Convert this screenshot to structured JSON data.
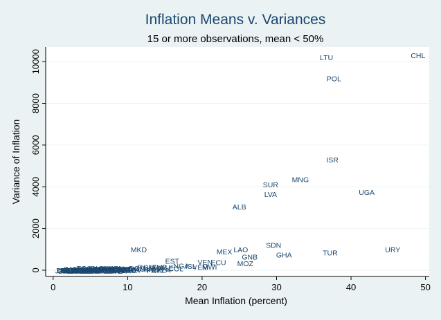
{
  "chart_data": {
    "type": "scatter",
    "title": "Inflation Means v. Variances",
    "subtitle": "15 or more observations, mean < 50%",
    "xlabel": "Mean Inflation (percent)",
    "ylabel": "Variance of Inflation",
    "xlim": [
      -1,
      50.5
    ],
    "ylim": [
      -300,
      10700
    ],
    "xticks": [
      0,
      10,
      20,
      30,
      40,
      50
    ],
    "yticks": [
      0,
      2000,
      4000,
      6000,
      8000,
      10000
    ],
    "grid": "horizontal",
    "marker": "country-code labels",
    "points": [
      {
        "label": "LTU",
        "x": 36.7,
        "y": 10200
      },
      {
        "label": "CHL",
        "x": 49.0,
        "y": 10300
      },
      {
        "label": "POL",
        "x": 37.7,
        "y": 9200
      },
      {
        "label": "ISR",
        "x": 37.5,
        "y": 5300
      },
      {
        "label": "MNG",
        "x": 33.2,
        "y": 4350
      },
      {
        "label": "SUR",
        "x": 29.2,
        "y": 4100
      },
      {
        "label": "UGA",
        "x": 42.1,
        "y": 3750
      },
      {
        "label": "LVA",
        "x": 29.2,
        "y": 3650
      },
      {
        "label": "ALB",
        "x": 25.0,
        "y": 3050
      },
      {
        "label": "SDN",
        "x": 29.6,
        "y": 1200
      },
      {
        "label": "MKD",
        "x": 11.5,
        "y": 1000
      },
      {
        "label": "MEX",
        "x": 23.0,
        "y": 900
      },
      {
        "label": "LAO",
        "x": 25.2,
        "y": 1000
      },
      {
        "label": "URY",
        "x": 45.6,
        "y": 1000
      },
      {
        "label": "TUR",
        "x": 37.2,
        "y": 850
      },
      {
        "label": "GHA",
        "x": 31.0,
        "y": 750
      },
      {
        "label": "GNB",
        "x": 26.4,
        "y": 650
      },
      {
        "label": "EST",
        "x": 16.0,
        "y": 450
      },
      {
        "label": "VEN",
        "x": 20.4,
        "y": 400
      },
      {
        "label": "ECU",
        "x": 22.2,
        "y": 380
      },
      {
        "label": "MOZ",
        "x": 25.8,
        "y": 330
      },
      {
        "label": "NGA",
        "x": 17.2,
        "y": 220
      },
      {
        "label": "ISL",
        "x": 18.5,
        "y": 200
      },
      {
        "label": "MWI",
        "x": 21.0,
        "y": 170
      },
      {
        "label": "YEM",
        "x": 19.8,
        "y": 150
      },
      {
        "label": "ROM",
        "x": 12.5,
        "y": 150
      },
      {
        "label": "ZMB",
        "x": 14.3,
        "y": 150
      },
      {
        "label": "SLE",
        "x": 15.2,
        "y": 120
      },
      {
        "label": "COL",
        "x": 16.5,
        "y": 80
      },
      {
        "label": "DOM",
        "x": 11.3,
        "y": 90
      },
      {
        "label": "KEN",
        "x": 8.5,
        "y": 90
      },
      {
        "label": "PHL",
        "x": 7.2,
        "y": 80
      },
      {
        "label": "GUY",
        "x": 6.0,
        "y": 100
      },
      {
        "label": "IND",
        "x": 7.8,
        "y": 60
      },
      {
        "label": "IDN",
        "x": 9.8,
        "y": 70
      },
      {
        "label": "JAM",
        "x": 10.5,
        "y": 40
      },
      {
        "label": "ETH",
        "x": 6.8,
        "y": 20
      },
      {
        "label": "HTI",
        "x": 10.0,
        "y": 20
      },
      {
        "label": "HND",
        "x": 13.2,
        "y": 40
      },
      {
        "label": "GTM",
        "x": 9.2,
        "y": 30
      },
      {
        "label": "TZA",
        "x": 14.8,
        "y": 10
      },
      {
        "label": "CRI",
        "x": 14.0,
        "y": 20
      },
      {
        "label": "PRY",
        "x": 13.5,
        "y": 0
      },
      {
        "label": "SLV",
        "x": 11.0,
        "y": 10
      },
      {
        "label": "CIV",
        "x": 5.2,
        "y": 10
      },
      {
        "label": "TGO",
        "x": 4.2,
        "y": 100
      },
      {
        "label": "SEN",
        "x": 3.6,
        "y": 40
      },
      {
        "label": "GAB",
        "x": 3.0,
        "y": 20
      },
      {
        "label": "BEN",
        "x": 2.6,
        "y": 10
      },
      {
        "label": "MLI",
        "x": 3.2,
        "y": 0
      },
      {
        "label": "NER",
        "x": 2.2,
        "y": 0
      },
      {
        "label": "BFA",
        "x": 2.0,
        "y": -10
      },
      {
        "label": "CMR",
        "x": 4.8,
        "y": 0
      },
      {
        "label": "TCD",
        "x": 5.6,
        "y": -10
      },
      {
        "label": "CAF",
        "x": 6.3,
        "y": 0
      },
      {
        "label": "COG",
        "x": 7.0,
        "y": -10
      },
      {
        "label": "MAR",
        "x": 5.4,
        "y": 20
      },
      {
        "label": "TUN",
        "x": 4.5,
        "y": 10
      },
      {
        "label": "THA",
        "x": 4.0,
        "y": 0
      },
      {
        "label": "MYS",
        "x": 3.4,
        "y": -20
      },
      {
        "label": "SGP",
        "x": 1.9,
        "y": 0
      },
      {
        "label": "CHE",
        "x": 1.6,
        "y": -30
      },
      {
        "label": "DEU",
        "x": 1.5,
        "y": -10
      },
      {
        "label": "JPN",
        "x": 1.2,
        "y": -20
      },
      {
        "label": "AUT",
        "x": 2.3,
        "y": -30
      },
      {
        "label": "NLD",
        "x": 2.0,
        "y": -40
      },
      {
        "label": "BEL",
        "x": 2.6,
        "y": -20
      },
      {
        "label": "USA",
        "x": 3.0,
        "y": -30
      },
      {
        "label": "CAN",
        "x": 3.3,
        "y": -10
      },
      {
        "label": "FRA",
        "x": 3.8,
        "y": -20
      },
      {
        "label": "GBR",
        "x": 4.4,
        "y": -30
      },
      {
        "label": "ITA",
        "x": 5.0,
        "y": -20
      },
      {
        "label": "ESP",
        "x": 5.8,
        "y": -30
      },
      {
        "label": "PRT",
        "x": 7.4,
        "y": -20
      },
      {
        "label": "GRC",
        "x": 8.0,
        "y": 0
      },
      {
        "label": "IRL",
        "x": 6.5,
        "y": -30
      },
      {
        "label": "NZL",
        "x": 4.6,
        "y": -40
      },
      {
        "label": "AUS",
        "x": 4.1,
        "y": -40
      },
      {
        "label": "SWE",
        "x": 4.0,
        "y": 20
      },
      {
        "label": "NOR",
        "x": 3.7,
        "y": -40
      },
      {
        "label": "DNK",
        "x": 3.5,
        "y": 20
      },
      {
        "label": "FIN",
        "x": 3.6,
        "y": 10
      },
      {
        "label": "KOR",
        "x": 5.5,
        "y": 40
      },
      {
        "label": "PAK",
        "x": 7.6,
        "y": 10
      },
      {
        "label": "LKA",
        "x": 9.5,
        "y": -20
      },
      {
        "label": "BGD",
        "x": 6.2,
        "y": 10
      },
      {
        "label": "NPL",
        "x": 8.3,
        "y": -30
      },
      {
        "label": "EGY",
        "x": 8.8,
        "y": 20
      },
      {
        "label": "SYR",
        "x": 9.0,
        "y": -10
      },
      {
        "label": "JOR",
        "x": 5.2,
        "y": -40
      },
      {
        "label": "ZAF",
        "x": 9.6,
        "y": 40
      },
      {
        "label": "BWA",
        "x": 8.7,
        "y": 50
      },
      {
        "label": "LSO",
        "x": 10.2,
        "y": -10
      },
      {
        "label": "SWZ",
        "x": 9.4,
        "y": 70
      },
      {
        "label": "MUS",
        "x": 7.1,
        "y": 50
      },
      {
        "label": "FJI",
        "x": 5.9,
        "y": 30
      },
      {
        "label": "PNG",
        "x": 6.7,
        "y": -40
      },
      {
        "label": "BHS",
        "x": 4.9,
        "y": 60
      },
      {
        "label": "BRB",
        "x": 5.7,
        "y": 70
      },
      {
        "label": "TTO",
        "x": 7.3,
        "y": 80
      },
      {
        "label": "PAN",
        "x": 2.4,
        "y": 50
      },
      {
        "label": "HUN",
        "x": 12.0,
        "y": 60
      },
      {
        "label": "CZE",
        "x": 8.1,
        "y": 60
      },
      {
        "label": "SVK",
        "x": 8.4,
        "y": -40
      },
      {
        "label": "SVN",
        "x": 13.8,
        "y": 110
      }
    ]
  }
}
